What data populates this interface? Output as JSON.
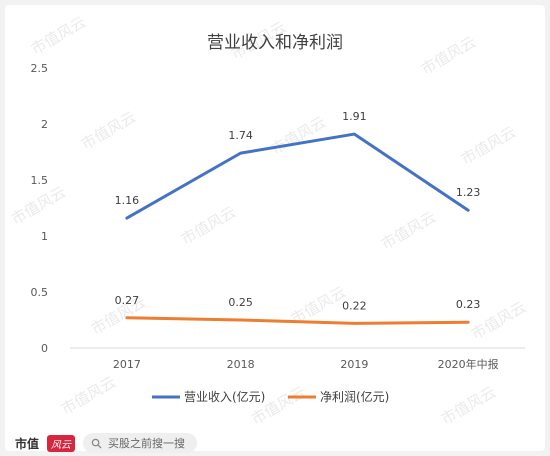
{
  "chart_data": {
    "type": "line",
    "title": "营业收入和净利润",
    "categories": [
      "2017",
      "2018",
      "2019",
      "2020年中报"
    ],
    "series": [
      {
        "name": "营业收入(亿元)",
        "values": [
          1.16,
          1.74,
          1.91,
          1.23
        ],
        "color": "#4472c4"
      },
      {
        "name": "净利润(亿元)",
        "values": [
          0.27,
          0.25,
          0.22,
          0.23
        ],
        "color": "#ed7d31"
      }
    ],
    "ylim": [
      0,
      2.5
    ],
    "yticks": [
      "0",
      "0.5",
      "1",
      "1.5",
      "2",
      "2.5"
    ],
    "grid": false,
    "legend": "bottom"
  },
  "watermark": "市值风云",
  "footer": {
    "brand": "市值",
    "brand_mark": "风云",
    "search_text": "买股之前搜一搜",
    "search_icon": "search-icon"
  }
}
